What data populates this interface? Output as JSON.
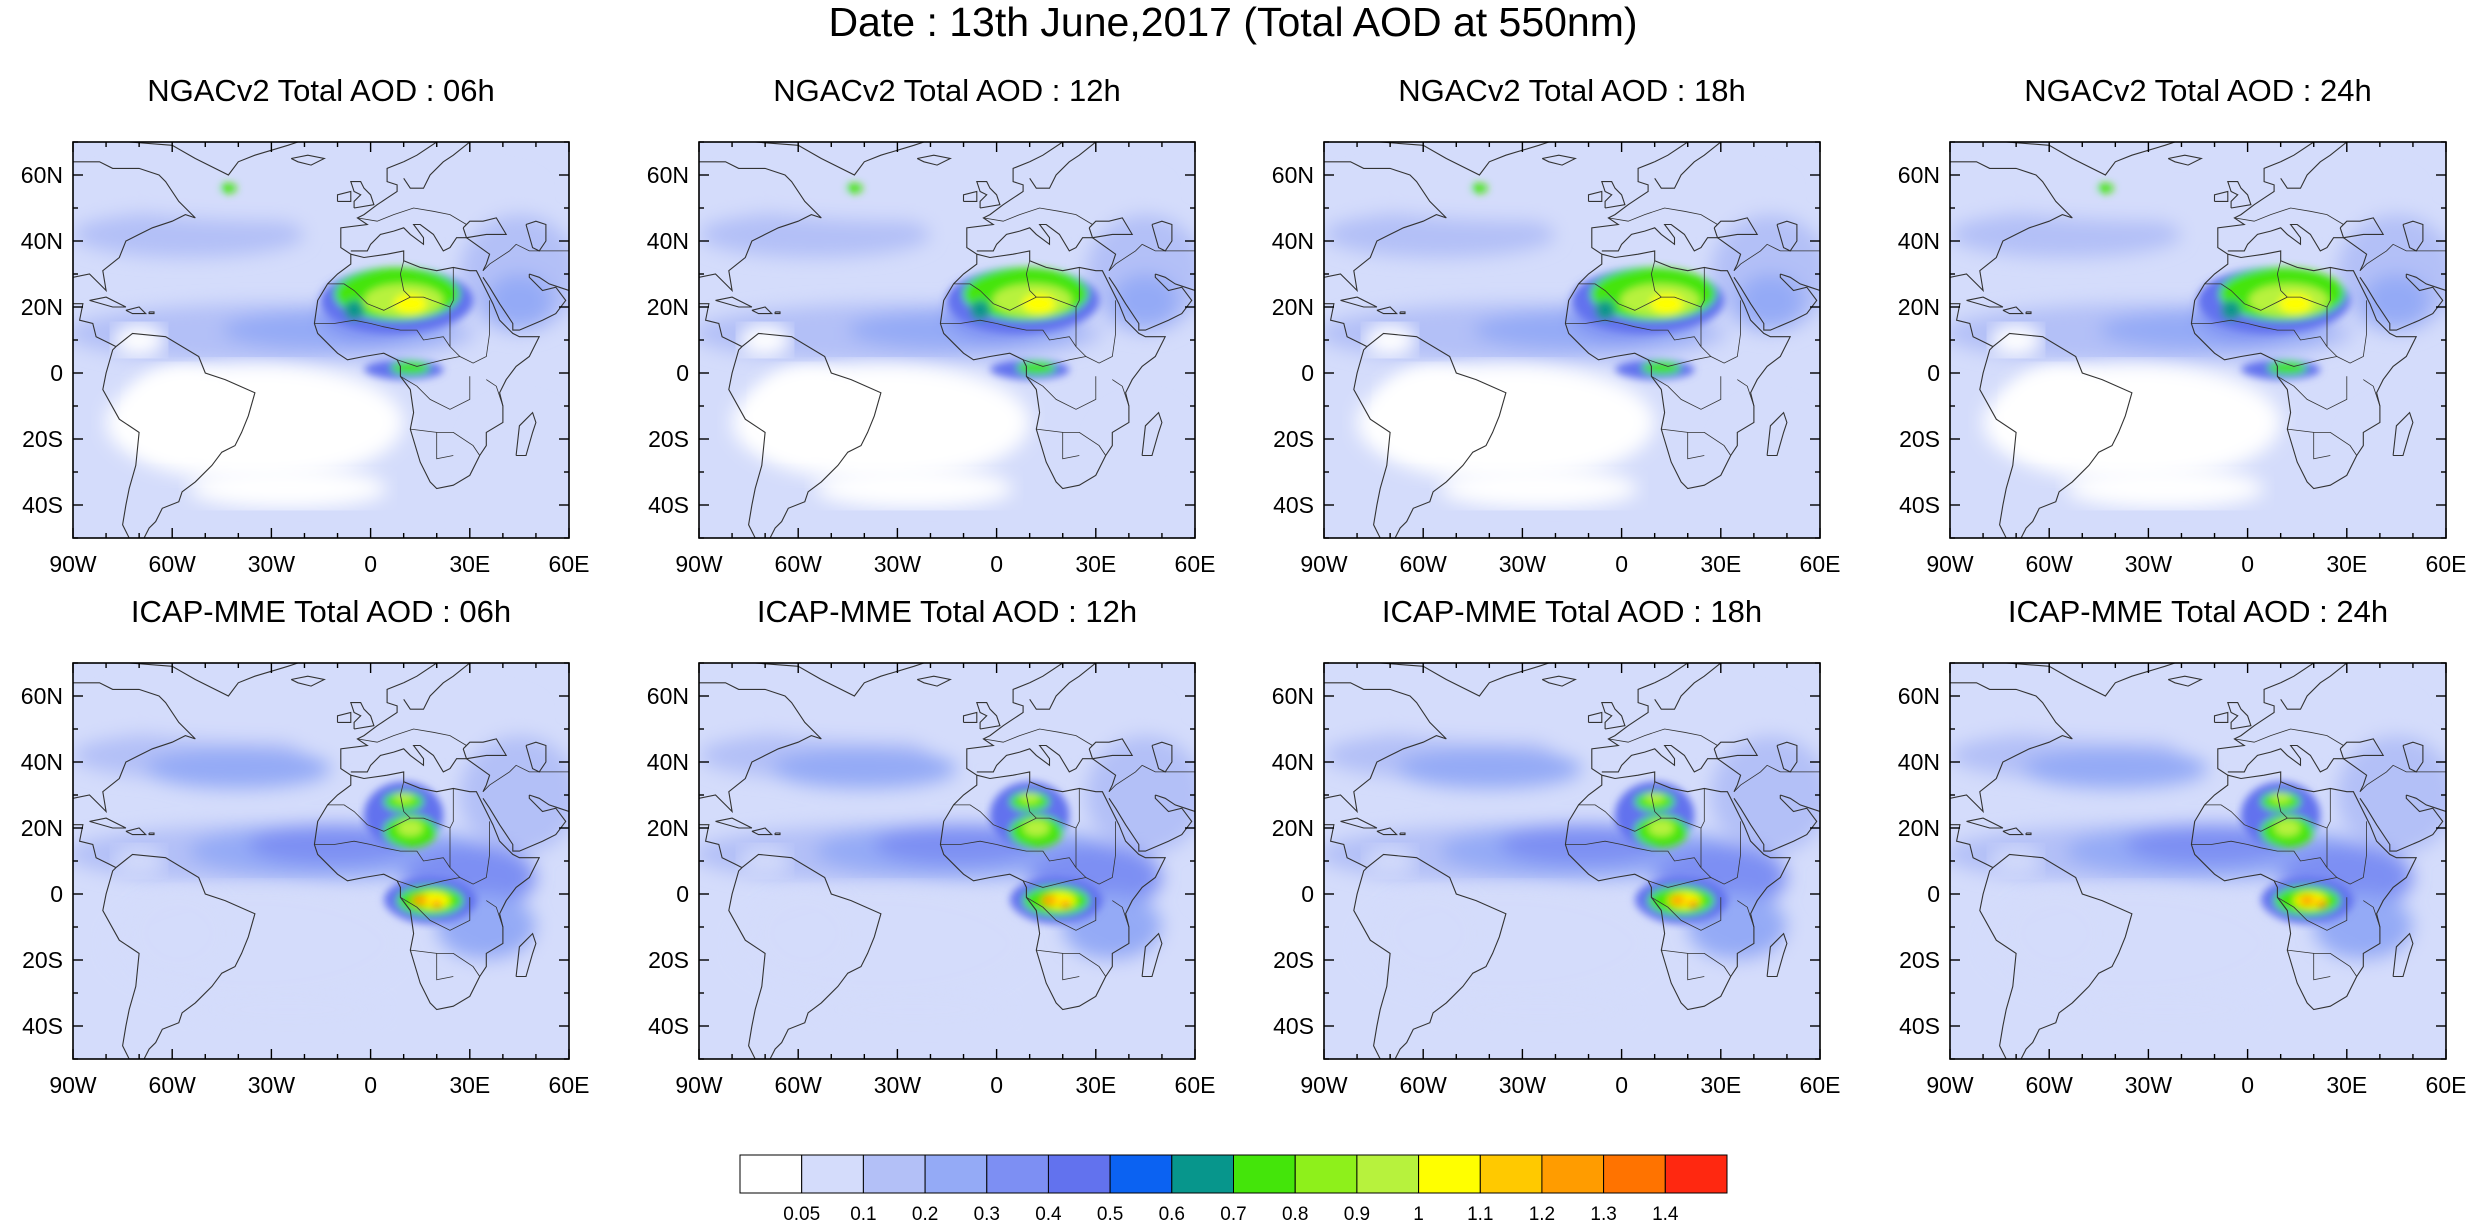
{
  "title": "Date : 13th June,2017 (Total AOD at 550nm)",
  "rows": [
    {
      "model": "NGACv2",
      "panels": [
        {
          "title": "NGACv2 Total AOD : 06h",
          "hour": "06h"
        },
        {
          "title": "NGACv2 Total AOD : 12h",
          "hour": "12h"
        },
        {
          "title": "NGACv2 Total AOD : 18h",
          "hour": "18h"
        },
        {
          "title": "NGACv2 Total AOD : 24h",
          "hour": "24h"
        }
      ]
    },
    {
      "model": "ICAP-MME",
      "panels": [
        {
          "title": "ICAP-MME Total AOD : 06h",
          "hour": "06h"
        },
        {
          "title": "ICAP-MME Total AOD : 12h",
          "hour": "12h"
        },
        {
          "title": "ICAP-MME Total AOD : 18h",
          "hour": "18h"
        },
        {
          "title": "ICAP-MME Total AOD : 24h",
          "hour": "24h"
        }
      ]
    }
  ],
  "map_extent": {
    "lon": [
      -90,
      60
    ],
    "lat": [
      -50,
      70
    ]
  },
  "lon_ticks": [
    {
      "value": -90,
      "label": "90W"
    },
    {
      "value": -60,
      "label": "60W"
    },
    {
      "value": -30,
      "label": "30W"
    },
    {
      "value": 0,
      "label": "0"
    },
    {
      "value": 30,
      "label": "30E"
    },
    {
      "value": 60,
      "label": "60E"
    }
  ],
  "lat_ticks": [
    {
      "value": 60,
      "label": "60N"
    },
    {
      "value": 40,
      "label": "40N"
    },
    {
      "value": 20,
      "label": "20N"
    },
    {
      "value": 0,
      "label": "0"
    },
    {
      "value": -20,
      "label": "20S"
    },
    {
      "value": -40,
      "label": "40S"
    }
  ],
  "colorbar": {
    "colors": [
      "#ffffff",
      "#d4dcfb",
      "#b3c0f7",
      "#94aaf6",
      "#7d8ff3",
      "#6272ee",
      "#0b62f2",
      "#07968c",
      "#44e50a",
      "#8ef01b",
      "#b7f23d",
      "#ffff00",
      "#ffc900",
      "#ff9c00",
      "#ff7300",
      "#ff2810"
    ],
    "labels": [
      "0.05",
      "0.1",
      "0.2",
      "0.3",
      "0.4",
      "0.5",
      "0.6",
      "0.7",
      "0.8",
      "0.9",
      "1",
      "1.1",
      "1.2",
      "1.3",
      "1.4"
    ]
  },
  "colors": {
    "background": "#ffffff",
    "coast": "#333333",
    "frame": "#000000"
  }
}
